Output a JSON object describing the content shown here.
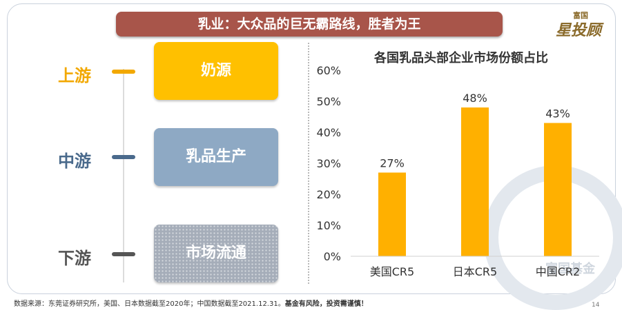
{
  "header": {
    "title": "乳业：大众品的巨无霸路线，胜者为王"
  },
  "logo": {
    "small": "富国",
    "large": "星投顾"
  },
  "stages": [
    {
      "label": "上游",
      "box": "奶源",
      "label_color": "#f2a800",
      "box_color": "#ffc000"
    },
    {
      "label": "中游",
      "box": "乳品生产",
      "label_color": "#4a6a8c",
      "box_color": "#8ea9c4"
    },
    {
      "label": "下游",
      "box": "市场流通",
      "label_color": "#555555",
      "box_color": "#a5adb9"
    }
  ],
  "chart_data": {
    "type": "bar",
    "title": "各国乳品头部企业市场份额占比",
    "categories": [
      "美国CR5",
      "日本CR5",
      "中国CR2"
    ],
    "values": [
      27,
      48,
      43
    ],
    "value_labels": [
      "27%",
      "48%",
      "43%"
    ],
    "yticks": [
      "0%",
      "10%",
      "20%",
      "30%",
      "40%",
      "50%",
      "60%"
    ],
    "ylim": [
      0,
      60
    ],
    "bar_color": "#ffb000",
    "grid": false
  },
  "watermark": {
    "text": "富国基金"
  },
  "footer": {
    "source": "数据来源：东莞证券研究所，美国、日本数据截至2020年；中国数据截至2021.12.31。",
    "risk": "基金有风险，投资需谨慎！"
  },
  "page_number": "14"
}
